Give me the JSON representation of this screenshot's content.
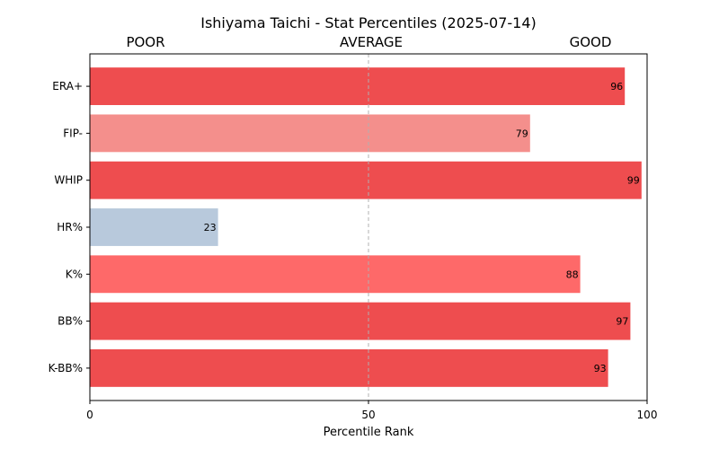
{
  "chart_data": {
    "type": "bar",
    "orientation": "horizontal",
    "title": "Ishiyama Taichi - Stat Percentiles (2025-07-14)",
    "xlabel": "Percentile Rank",
    "ylabel": "",
    "xlim": [
      0,
      100
    ],
    "xticks": [
      "0",
      "50",
      "100"
    ],
    "zone_labels": [
      "POOR",
      "AVERAGE",
      "GOOD"
    ],
    "reference_line": 50,
    "grid": false,
    "categories": [
      "ERA+",
      "FIP-",
      "WHIP",
      "HR%",
      "K%",
      "BB%",
      "K-BB%"
    ],
    "values": [
      96,
      79,
      99,
      23,
      88,
      97,
      93
    ],
    "colors": [
      "#ee4d4f",
      "#f48f8c",
      "#ee4d4f",
      "#b8c9dc",
      "#fe6969",
      "#ee4d4f",
      "#ee4d4f"
    ]
  }
}
